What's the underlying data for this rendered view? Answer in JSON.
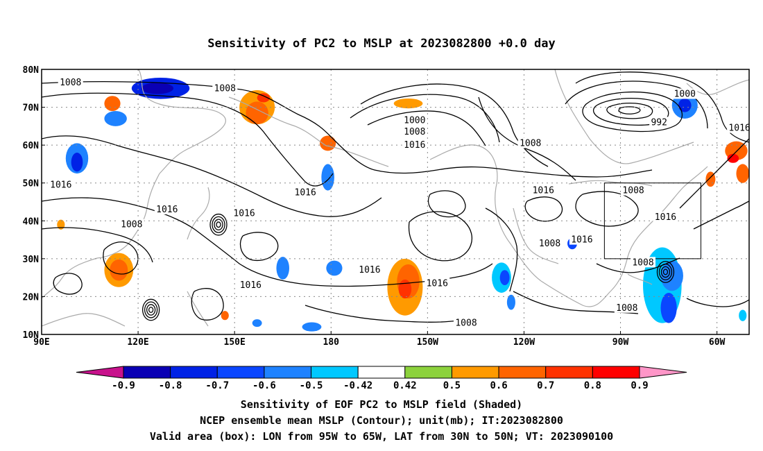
{
  "chart_data": {
    "type": "heatmap",
    "title": "Sensitivity of PC2 to MSLP at 2023082800 +0.0 day",
    "x_ticks": [
      "90E",
      "120E",
      "150E",
      "180",
      "150W",
      "120W",
      "90W",
      "60W"
    ],
    "y_ticks": [
      "10N",
      "20N",
      "30N",
      "40N",
      "50N",
      "60N",
      "70N",
      "80N"
    ],
    "lon_range": [
      90,
      310
    ],
    "lat_range": [
      10,
      80
    ],
    "grid": "dotted",
    "colorbar": {
      "levels": [
        "-0.9",
        "-0.8",
        "-0.7",
        "-0.6",
        "-0.5",
        "-0.42",
        "0.42",
        "0.5",
        "0.6",
        "0.7",
        "0.8",
        "0.9"
      ],
      "colors": [
        "#c8128c",
        "#0a00b4",
        "#0022e6",
        "#0a46ff",
        "#1e82ff",
        "#00c8ff",
        "#ffffff",
        "#8cd23c",
        "#ff9a00",
        "#ff6400",
        "#ff3200",
        "#ff0000",
        "#ff96c8"
      ]
    },
    "valid_box": {
      "lon": [
        265,
        295
      ],
      "lat": [
        30,
        50
      ]
    },
    "contour_labels": [
      {
        "text": "1008",
        "lon": 99,
        "lat": 76.5
      },
      {
        "text": "1008",
        "lon": 147,
        "lat": 75
      },
      {
        "text": "1000",
        "lon": 206,
        "lat": 66.5
      },
      {
        "text": "1008",
        "lon": 206,
        "lat": 63.5
      },
      {
        "text": "1016",
        "lon": 206,
        "lat": 60
      },
      {
        "text": "1008",
        "lon": 242,
        "lat": 60.5
      },
      {
        "text": "1000",
        "lon": 290,
        "lat": 73.5
      },
      {
        "text": "992",
        "lon": 282,
        "lat": 66
      },
      {
        "text": "1016",
        "lon": 307,
        "lat": 64.5
      },
      {
        "text": "1016",
        "lon": 246,
        "lat": 48
      },
      {
        "text": "1008",
        "lon": 274,
        "lat": 48
      },
      {
        "text": "1016",
        "lon": 96,
        "lat": 49.5
      },
      {
        "text": "1016",
        "lon": 172,
        "lat": 47.5
      },
      {
        "text": "1016",
        "lon": 129,
        "lat": 43
      },
      {
        "text": "1016",
        "lon": 153,
        "lat": 42
      },
      {
        "text": "1008",
        "lon": 118,
        "lat": 39
      },
      {
        "text": "1016",
        "lon": 284,
        "lat": 41
      },
      {
        "text": "1016",
        "lon": 258,
        "lat": 35
      },
      {
        "text": "1008",
        "lon": 248,
        "lat": 34
      },
      {
        "text": "1008",
        "lon": 277,
        "lat": 29
      },
      {
        "text": "1016",
        "lon": 192,
        "lat": 27
      },
      {
        "text": "1016",
        "lon": 155,
        "lat": 23
      },
      {
        "text": "1016",
        "lon": 213,
        "lat": 23.5
      },
      {
        "text": "1008",
        "lon": 272,
        "lat": 17
      },
      {
        "text": "1008",
        "lon": 222,
        "lat": 13
      }
    ],
    "shaded_regions": [
      {
        "lon": 127,
        "lat": 75,
        "rx": 9,
        "ry": 2.8,
        "value": -0.8
      },
      {
        "lon": 126,
        "lat": 75,
        "rx": 5,
        "ry": 1.5,
        "value": -0.9
      },
      {
        "lon": 112,
        "lat": 71,
        "rx": 2.5,
        "ry": 2,
        "value": 0.6
      },
      {
        "lon": 113,
        "lat": 67,
        "rx": 3.5,
        "ry": 2,
        "value": -0.6
      },
      {
        "lon": 101,
        "lat": 56.5,
        "rx": 3.5,
        "ry": 4,
        "value": -0.6
      },
      {
        "lon": 101,
        "lat": 55.5,
        "rx": 1.8,
        "ry": 2.5,
        "value": -0.8
      },
      {
        "lon": 157,
        "lat": 70,
        "rx": 5.5,
        "ry": 4.5,
        "value": 0.5
      },
      {
        "lon": 157,
        "lat": 68.5,
        "rx": 3.5,
        "ry": 3,
        "value": 0.6
      },
      {
        "lon": 159,
        "lat": 72.5,
        "rx": 2,
        "ry": 1.2,
        "value": 0.7
      },
      {
        "lon": 179,
        "lat": 60.5,
        "rx": 2.5,
        "ry": 2,
        "value": 0.6
      },
      {
        "lon": 179,
        "lat": 51.5,
        "rx": 2,
        "ry": 3.5,
        "value": -0.6
      },
      {
        "lon": 204,
        "lat": 71,
        "rx": 4.5,
        "ry": 1.3,
        "value": 0.5
      },
      {
        "lon": 290,
        "lat": 70.5,
        "rx": 4,
        "ry": 3.5,
        "value": -0.6
      },
      {
        "lon": 290,
        "lat": 70.5,
        "rx": 2,
        "ry": 1.8,
        "value": -0.8
      },
      {
        "lon": 306,
        "lat": 58.5,
        "rx": 3.5,
        "ry": 2.5,
        "value": 0.6
      },
      {
        "lon": 305,
        "lat": 56.5,
        "rx": 1.8,
        "ry": 1.2,
        "value": 0.8
      },
      {
        "lon": 308,
        "lat": 52.5,
        "rx": 2,
        "ry": 2.5,
        "value": 0.6
      },
      {
        "lon": 298,
        "lat": 51,
        "rx": 1.5,
        "ry": 2,
        "value": 0.6
      },
      {
        "lon": 114,
        "lat": 27,
        "rx": 4.5,
        "ry": 4.5,
        "value": 0.5
      },
      {
        "lon": 114,
        "lat": 27,
        "rx": 2.8,
        "ry": 2.8,
        "value": 0.6
      },
      {
        "lon": 96,
        "lat": 39,
        "rx": 1.2,
        "ry": 1.3,
        "value": 0.5
      },
      {
        "lon": 165,
        "lat": 27.5,
        "rx": 2,
        "ry": 3,
        "value": -0.6
      },
      {
        "lon": 181,
        "lat": 27.5,
        "rx": 2.5,
        "ry": 2,
        "value": -0.6
      },
      {
        "lon": 203,
        "lat": 22.5,
        "rx": 5.5,
        "ry": 7.5,
        "value": 0.5
      },
      {
        "lon": 204,
        "lat": 24,
        "rx": 3.5,
        "ry": 4.5,
        "value": 0.6
      },
      {
        "lon": 203,
        "lat": 22,
        "rx": 2,
        "ry": 2.5,
        "value": 0.7
      },
      {
        "lon": 233,
        "lat": 25,
        "rx": 3,
        "ry": 4,
        "value": -0.5
      },
      {
        "lon": 234,
        "lat": 25,
        "rx": 1.5,
        "ry": 2,
        "value": -0.7
      },
      {
        "lon": 236,
        "lat": 18.5,
        "rx": 1.3,
        "ry": 2,
        "value": -0.6
      },
      {
        "lon": 283,
        "lat": 23,
        "rx": 6,
        "ry": 10,
        "value": -0.5
      },
      {
        "lon": 286,
        "lat": 25.5,
        "rx": 3.5,
        "ry": 4,
        "value": -0.6
      },
      {
        "lon": 285,
        "lat": 17,
        "rx": 2.5,
        "ry": 4,
        "value": -0.7
      },
      {
        "lon": 147,
        "lat": 15,
        "rx": 1.2,
        "ry": 1.2,
        "value": 0.6
      },
      {
        "lon": 255,
        "lat": 34,
        "rx": 1.5,
        "ry": 1.5,
        "value": -0.7
      },
      {
        "lon": 308,
        "lat": 15,
        "rx": 1.2,
        "ry": 1.5,
        "value": -0.5
      },
      {
        "lon": 157,
        "lat": 13,
        "rx": 1.5,
        "ry": 1,
        "value": -0.6
      },
      {
        "lon": 174,
        "lat": 12,
        "rx": 3,
        "ry": 1.2,
        "value": -0.6
      }
    ],
    "isolated_highs": [
      {
        "lon": 145,
        "lat": 39,
        "rings": 4
      },
      {
        "lon": 124,
        "lat": 16.5,
        "rings": 4
      },
      {
        "lon": 284,
        "lat": 26.5,
        "rings": 4
      }
    ]
  },
  "caption": {
    "line1": "Sensitivity of EOF PC2 to MSLP field (Shaded)",
    "line2": "NCEP ensemble mean MSLP (Contour); unit(mb); IT:2023082800",
    "line3": "Valid area (box): LON from 95W to 65W, LAT from 30N to 50N; VT: 2023090100"
  }
}
